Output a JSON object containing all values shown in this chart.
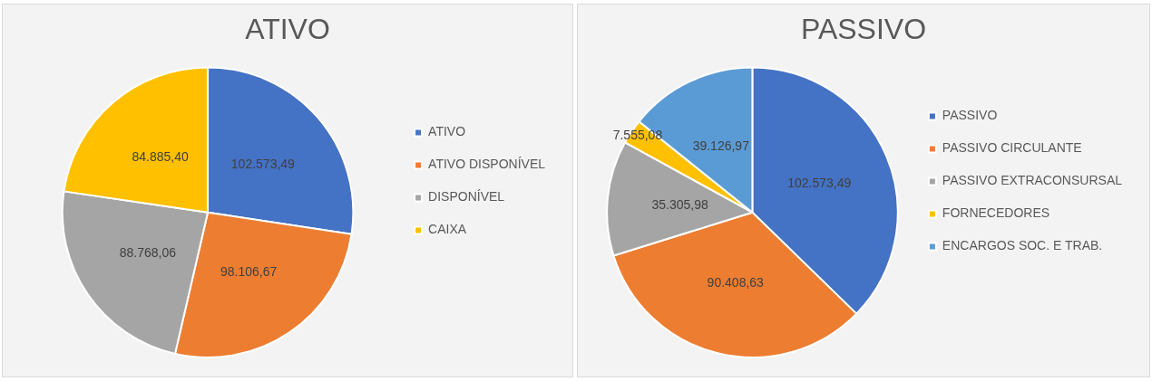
{
  "chart_data": [
    {
      "type": "pie",
      "title": "ATIVO",
      "categories": [
        "ATIVO",
        "ATIVO DISPONÍVEL",
        "DISPONÍVEL",
        "CAIXA"
      ],
      "values": [
        102573.49,
        98106.67,
        88768.06,
        84885.4
      ],
      "colors": [
        "#4472c4",
        "#ed7d31",
        "#a5a5a5",
        "#ffc000"
      ],
      "value_labels": [
        "102.573,49",
        "98.106,67",
        "88.768,06",
        "84.885,40"
      ],
      "legend": "right"
    },
    {
      "type": "pie",
      "title": "PASSIVO",
      "categories": [
        "PASSIVO",
        "PASSIVO CIRCULANTE",
        "PASSIVO EXTRACONSURSAL",
        "FORNECEDORES",
        "ENCARGOS SOC. E TRAB."
      ],
      "values": [
        102573.49,
        90408.63,
        35305.98,
        7555.08,
        39126.97
      ],
      "colors": [
        "#4472c4",
        "#ed7d31",
        "#a5a5a5",
        "#ffc000",
        "#5b9bd5"
      ],
      "value_labels": [
        "102.573,49",
        "90.408,63",
        "35.305,98",
        "7.555,08",
        "39.126,97"
      ],
      "legend": "right"
    }
  ]
}
